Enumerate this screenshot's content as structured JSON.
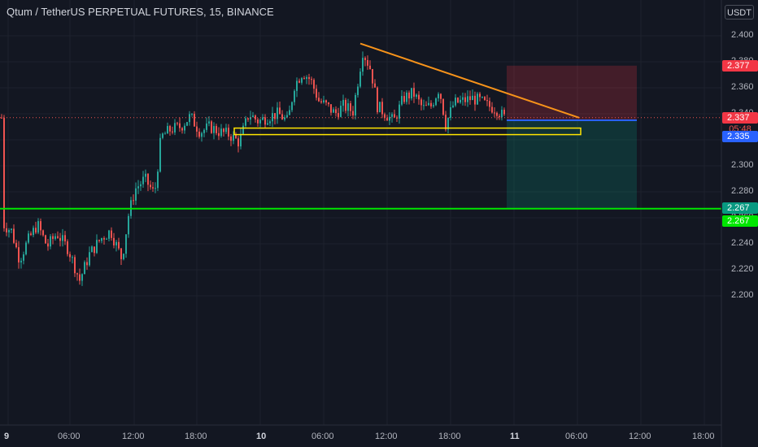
{
  "header": {
    "symbol_title": "Qtum / TetherUS PERPETUAL FUTURES, 15, BINANCE",
    "currency": "USDT"
  },
  "y_axis": {
    "ticks": [
      "2.400",
      "2.380",
      "2.360",
      "2.340",
      "2.320",
      "2.300",
      "2.280",
      "2.260",
      "2.240",
      "2.220",
      "2.200"
    ],
    "range": [
      2.19,
      2.41
    ]
  },
  "x_axis": {
    "ticks": [
      {
        "label": "9",
        "bold": true
      },
      {
        "label": "06:00",
        "bold": false
      },
      {
        "label": "12:00",
        "bold": false
      },
      {
        "label": "18:00",
        "bold": false
      },
      {
        "label": "10",
        "bold": true
      },
      {
        "label": "06:00",
        "bold": false
      },
      {
        "label": "12:00",
        "bold": false
      },
      {
        "label": "18:00",
        "bold": false
      },
      {
        "label": "11",
        "bold": true
      },
      {
        "label": "06:00",
        "bold": false
      },
      {
        "label": "12:00",
        "bold": false
      },
      {
        "label": "18:00",
        "bold": false
      }
    ]
  },
  "price_badges": {
    "stop_loss": {
      "label": "2.377",
      "color": "#f23645"
    },
    "last_price": {
      "label": "2.337",
      "color": "#f23645"
    },
    "countdown": "05:48",
    "entry": {
      "label": "2.335",
      "color": "#2962ff"
    },
    "target": {
      "label": "2.267",
      "color": "#089981"
    },
    "horizontal_line": {
      "label": "2.267",
      "color": "#00e600"
    }
  },
  "drawings": {
    "support_level": 2.267,
    "trendline": {
      "from_price": 2.394,
      "to_price": 2.337,
      "color": "#f7931a"
    },
    "zone": {
      "top": 2.329,
      "bottom": 2.324,
      "color": "#ffe500"
    },
    "position": {
      "entry": 2.335,
      "stop": 2.377,
      "target": 2.267
    }
  },
  "colors": {
    "up": "#26a69a",
    "down": "#ef5350",
    "background": "#131722",
    "grid": "#1e222d"
  }
}
